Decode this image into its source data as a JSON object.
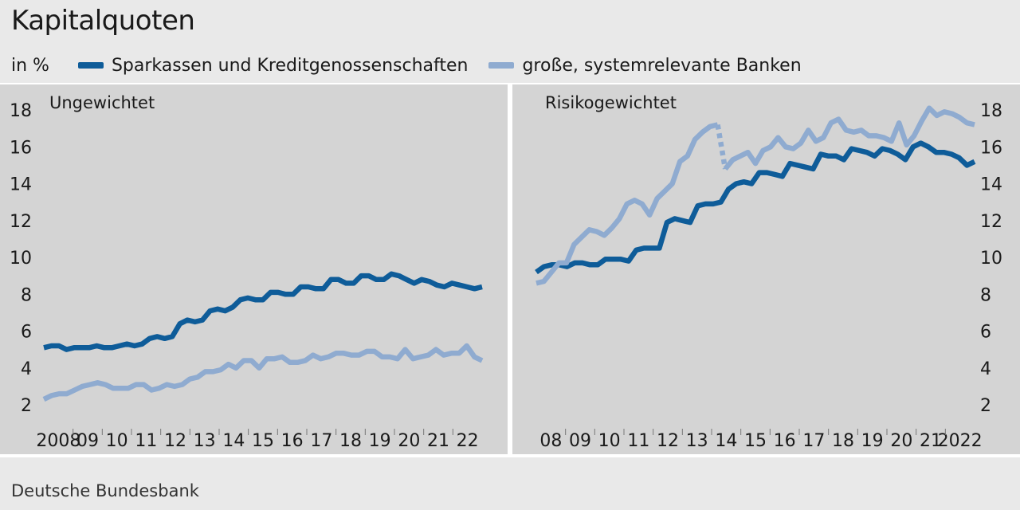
{
  "title": "Kapitalquoten",
  "unit_label": "in %",
  "legend": [
    {
      "label": "Sparkassen und Kreditgenossenschaften",
      "color": "#0e5c99"
    },
    {
      "label": "große, systemrelevante Banken",
      "color": "#8fabd0"
    }
  ],
  "source": "Deutsche Bundesbank",
  "chart_data": [
    {
      "type": "line",
      "title": "Ungewichtet",
      "ylim": [
        2,
        19
      ],
      "yticks": [
        2,
        4,
        6,
        8,
        10,
        12,
        14,
        16,
        18
      ],
      "x_tick_labels": [
        "2008",
        "09",
        "10",
        "11",
        "12",
        "13",
        "14",
        "15",
        "16",
        "17",
        "18",
        "19",
        "20",
        "21",
        "22"
      ],
      "x_start_year": 2008,
      "grid": false,
      "series": [
        {
          "name": "Sparkassen und Kreditgenossenschaften",
          "color": "#0e5c99",
          "values": [
            5.1,
            5.2,
            5.2,
            5.0,
            5.1,
            5.1,
            5.1,
            5.2,
            5.1,
            5.1,
            5.2,
            5.3,
            5.2,
            5.3,
            5.6,
            5.7,
            5.6,
            5.7,
            6.4,
            6.6,
            6.5,
            6.6,
            7.1,
            7.2,
            7.1,
            7.3,
            7.7,
            7.8,
            7.7,
            7.7,
            8.1,
            8.1,
            8.0,
            8.0,
            8.4,
            8.4,
            8.3,
            8.3,
            8.8,
            8.8,
            8.6,
            8.6,
            9.0,
            9.0,
            8.8,
            8.8,
            9.1,
            9.0,
            8.8,
            8.6,
            8.8,
            8.7,
            8.5,
            8.4,
            8.6,
            8.5,
            8.4,
            8.3,
            8.4
          ]
        },
        {
          "name": "große, systemrelevante Banken",
          "color": "#8fabd0",
          "values": [
            2.3,
            2.5,
            2.6,
            2.6,
            2.8,
            3.0,
            3.1,
            3.2,
            3.1,
            2.9,
            2.9,
            2.9,
            3.1,
            3.1,
            2.8,
            2.9,
            3.1,
            3.0,
            3.1,
            3.4,
            3.5,
            3.8,
            3.8,
            3.9,
            4.2,
            4.0,
            4.4,
            4.4,
            4.0,
            4.5,
            4.5,
            4.6,
            4.3,
            4.3,
            4.4,
            4.7,
            4.5,
            4.6,
            4.8,
            4.8,
            4.7,
            4.7,
            4.9,
            4.9,
            4.6,
            4.6,
            4.5,
            5.0,
            4.5,
            4.6,
            4.7,
            5.0,
            4.7,
            4.8,
            4.8,
            5.2,
            4.6,
            4.4
          ]
        }
      ]
    },
    {
      "type": "line",
      "title": "Risikogewichtet",
      "ylim": [
        2,
        19
      ],
      "yticks": [
        2,
        4,
        6,
        8,
        10,
        12,
        14,
        16,
        18
      ],
      "x_tick_labels": [
        "08",
        "09",
        "10",
        "11",
        "12",
        "13",
        "14",
        "15",
        "16",
        "17",
        "18",
        "19",
        "20",
        "21",
        "2022"
      ],
      "x_start_year": 2008,
      "grid": false,
      "series": [
        {
          "name": "Sparkassen und Kreditgenossenschaften",
          "color": "#0e5c99",
          "values": [
            9.2,
            9.5,
            9.6,
            9.6,
            9.5,
            9.7,
            9.7,
            9.6,
            9.6,
            9.9,
            9.9,
            9.9,
            9.8,
            10.4,
            10.5,
            10.5,
            10.5,
            11.9,
            12.1,
            12.0,
            11.9,
            12.8,
            12.9,
            12.9,
            13.0,
            13.7,
            14.0,
            14.1,
            14.0,
            14.6,
            14.6,
            14.5,
            14.4,
            15.1,
            15.0,
            14.9,
            14.8,
            15.6,
            15.5,
            15.5,
            15.3,
            15.9,
            15.8,
            15.7,
            15.5,
            15.9,
            15.8,
            15.6,
            15.3,
            16.0,
            16.2,
            16.0,
            15.7,
            15.7,
            15.6,
            15.4,
            15.0,
            15.2
          ]
        },
        {
          "name": "große, systemrelevante Banken",
          "color": "#8fabd0",
          "break_after_index": 24,
          "values": [
            8.6,
            8.7,
            9.2,
            9.7,
            9.7,
            10.7,
            11.1,
            11.5,
            11.4,
            11.2,
            11.6,
            12.1,
            12.9,
            13.1,
            12.9,
            12.3,
            13.2,
            13.6,
            14.0,
            15.2,
            15.5,
            16.4,
            16.8,
            17.1,
            17.2,
            14.8,
            15.3,
            15.5,
            15.7,
            15.1,
            15.8,
            16.0,
            16.5,
            16.0,
            15.9,
            16.2,
            16.9,
            16.3,
            16.5,
            17.3,
            17.5,
            16.9,
            16.8,
            16.9,
            16.6,
            16.6,
            16.5,
            16.3,
            17.3,
            16.1,
            16.6,
            17.4,
            18.1,
            17.7,
            17.9,
            17.8,
            17.6,
            17.3,
            17.2
          ]
        }
      ]
    }
  ]
}
